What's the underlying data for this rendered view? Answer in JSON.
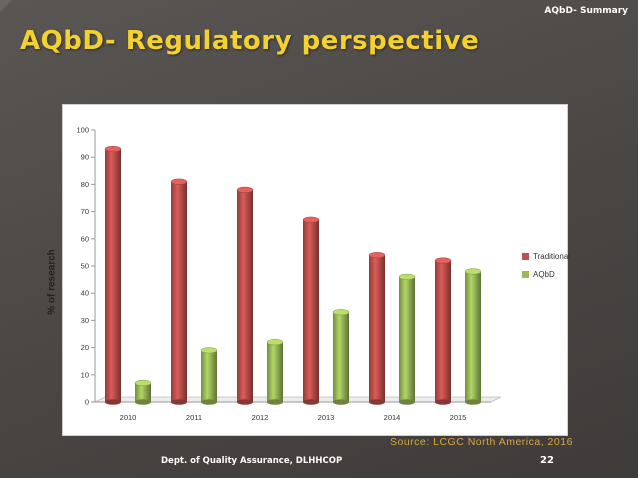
{
  "header": {
    "caption": "AQbD- Summary",
    "title": "AQbD- Regulatory perspective"
  },
  "chart_data": {
    "type": "bar",
    "categories": [
      "2010",
      "2011",
      "2012",
      "2013",
      "2014",
      "2015"
    ],
    "series": [
      {
        "name": "Traditional",
        "values": [
          93,
          81,
          78,
          67,
          54,
          52
        ],
        "color": "#c0504d"
      },
      {
        "name": "AQbD",
        "values": [
          7,
          19,
          22,
          33,
          46,
          48
        ],
        "color": "#9bbb59"
      }
    ],
    "ylabel": "% of research",
    "xlabel": "",
    "ylim": [
      0,
      100
    ],
    "yticks": [
      0,
      10,
      20,
      30,
      40,
      50,
      60,
      70,
      80,
      90,
      100
    ],
    "grid": false,
    "legend": "right",
    "style": "3d-cylinder"
  },
  "source": "Source: LCGC North America, 2016",
  "footer": {
    "department": "Dept. of Quality Assurance, DLHHCOP",
    "page_number": "22"
  }
}
